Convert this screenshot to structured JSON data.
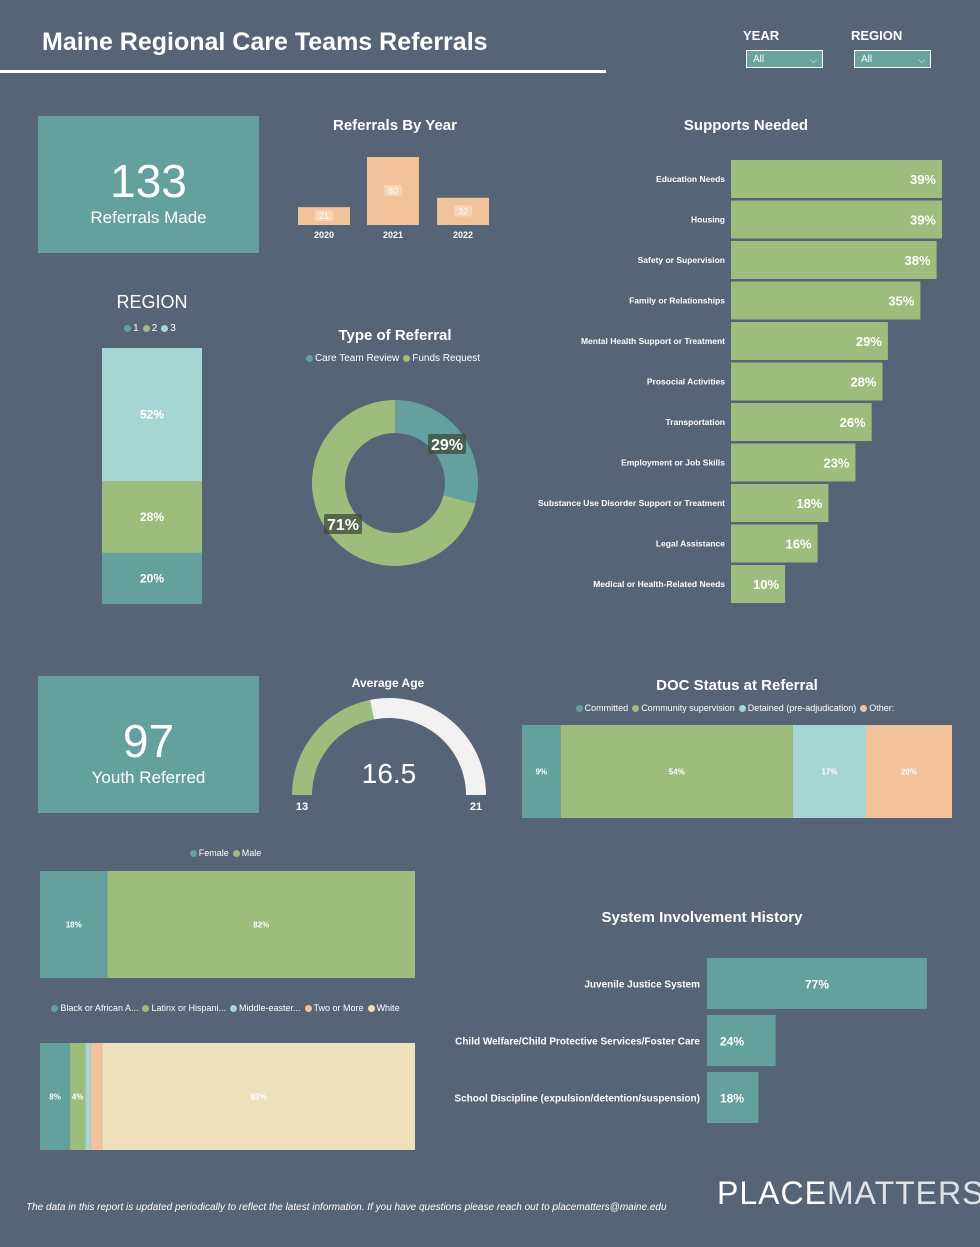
{
  "header": {
    "title": "Maine Regional Care Teams Referrals",
    "year_label": "YEAR",
    "year_value": "All",
    "region_label": "REGION",
    "region_value": "All"
  },
  "kpi_referrals": {
    "value": "133",
    "label": "Referrals Made"
  },
  "kpi_youth": {
    "value": "97",
    "label": "Youth Referred"
  },
  "colors": {
    "teal": "#64a09d",
    "green": "#9dbd7c",
    "light_teal": "#a5d6d4",
    "peach": "#f2c29a",
    "cream": "#ede0bb",
    "background": "#566478"
  },
  "footer": {
    "text": "The data in this report is updated periodically to reflect the latest information. If you have questions please reach out to placematters@maine.edu",
    "brand_a": "PLACE",
    "brand_b": "MATTERS"
  },
  "chart_data": [
    {
      "id": "referrals_by_year",
      "type": "bar",
      "title": "Referrals By Year",
      "categories": [
        "2020",
        "2021",
        "2022"
      ],
      "values": [
        21,
        80,
        32
      ]
    },
    {
      "id": "supports_needed",
      "type": "bar",
      "orientation": "horizontal",
      "title": "Supports Needed",
      "categories": [
        "Education Needs",
        "Housing",
        "Safety or Supervision",
        "Family or Relationships",
        "Mental Health Support or Treatment",
        "Prosocial Activities",
        "Transportation",
        "Employment or Job Skills",
        "Substance Use Disorder Support or Treatment",
        "Legal Assistance",
        "Medical or Health-Related Needs"
      ],
      "values": [
        39,
        39,
        38,
        35,
        29,
        28,
        26,
        23,
        18,
        16,
        10
      ],
      "value_labels": [
        "39%",
        "39%",
        "38%",
        "35%",
        "29%",
        "28%",
        "26%",
        "23%",
        "18%",
        "16%",
        "10%"
      ]
    },
    {
      "id": "region",
      "type": "bar",
      "stacked": true,
      "title": "REGION",
      "series": [
        {
          "name": "1",
          "value": 20,
          "label": "20%"
        },
        {
          "name": "2",
          "value": 28,
          "label": "28%"
        },
        {
          "name": "3",
          "value": 52,
          "label": "52%"
        }
      ]
    },
    {
      "id": "type_of_referral",
      "type": "pie",
      "donut": true,
      "title": "Type of Referral",
      "series": [
        {
          "name": "Care Team Review",
          "value": 29,
          "label": "29%"
        },
        {
          "name": "Funds Request",
          "value": 71,
          "label": "71%"
        }
      ]
    },
    {
      "id": "average_age",
      "type": "gauge",
      "title": "Average Age",
      "value": 16.5,
      "value_label": "16.5",
      "min": 13,
      "min_label": "13",
      "max": 21,
      "max_label": "21"
    },
    {
      "id": "doc_status",
      "type": "bar",
      "stacked": true,
      "title": "DOC Status at Referral",
      "series": [
        {
          "name": "Committed",
          "value": 9,
          "label": "9%"
        },
        {
          "name": "Community supervision",
          "value": 54,
          "label": "54%"
        },
        {
          "name": "Detained (pre-adjudication)",
          "value": 17,
          "label": "17%"
        },
        {
          "name": "Other:",
          "value": 20,
          "label": "20%"
        }
      ]
    },
    {
      "id": "gender",
      "type": "bar",
      "stacked": true,
      "series": [
        {
          "name": "Female",
          "value": 18,
          "label": "18%"
        },
        {
          "name": "Male",
          "value": 82,
          "label": "82%"
        }
      ]
    },
    {
      "id": "race",
      "type": "bar",
      "stacked": true,
      "series": [
        {
          "name": "Black or African A...",
          "value": 8,
          "label": "8%"
        },
        {
          "name": "Latinx or Hispani...",
          "value": 4,
          "label": "4%"
        },
        {
          "name": "Middle-easter...",
          "value": 1.5,
          "label": ""
        },
        {
          "name": "Two or More",
          "value": 3,
          "label": ""
        },
        {
          "name": "White",
          "value": 83,
          "label": "83%"
        }
      ]
    },
    {
      "id": "system_involvement",
      "type": "bar",
      "orientation": "horizontal",
      "title": "System Involvement History",
      "categories": [
        "Juvenile Justice System",
        "Child Welfare/Child Protective Services/Foster Care",
        "School Discipline (expulsion/detention/suspension)"
      ],
      "values": [
        77,
        24,
        18
      ],
      "value_labels": [
        "77%",
        "24%",
        "18%"
      ]
    }
  ]
}
